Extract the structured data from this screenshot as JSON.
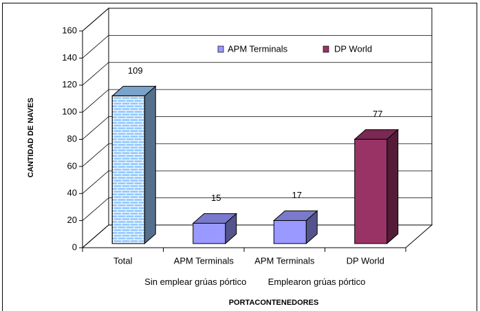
{
  "chart_data": {
    "type": "bar3d",
    "categories": [
      "Total",
      "APM Terminals",
      "APM Terminals",
      "DP World"
    ],
    "values": [
      109,
      15,
      17,
      77
    ],
    "colors": [
      "#99ccff",
      "#9999ff",
      "#9999ff",
      "#993366"
    ],
    "patterns": [
      "brick",
      null,
      null,
      null
    ],
    "groups": [
      {
        "label": "Sin emplear grúas pórtico",
        "from": 1,
        "to": 1
      },
      {
        "label": "Emplearon grúas pórtico",
        "from": 2,
        "to": 3
      }
    ],
    "legend": [
      {
        "name": "APM Terminals",
        "color": "#9999ff"
      },
      {
        "name": "DP World",
        "color": "#993366"
      }
    ],
    "y_label": "CANTIDAD DE NAVES",
    "x_label": "PORTACONTENEDORES",
    "ylim": [
      0,
      160
    ],
    "yticks": [
      0,
      20,
      40,
      60,
      80,
      100,
      120,
      140,
      160
    ],
    "grid": true
  }
}
